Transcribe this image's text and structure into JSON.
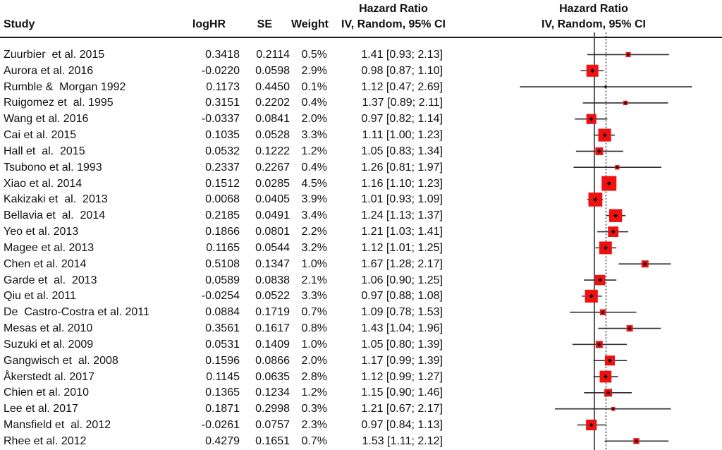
{
  "header": {
    "study": "Study",
    "loghr": "logHR",
    "se": "SE",
    "weight": "Weight",
    "hr_text_col": {
      "line1": "Hazard Ratio",
      "line2": "IV, Random, 95% CI"
    },
    "hr_plot_col": {
      "line1": "Hazard Ratio",
      "line2": "IV, Random, 95% CI"
    }
  },
  "colors": {
    "square": "#ee1111",
    "ci_line": "#2e2e2e",
    "reference_line": "#4a4a4a",
    "pooled_dashed_line": "#1a1a1a",
    "text": "#111111",
    "separator": "#1c1c1c"
  },
  "chart_data": {
    "type": "forest",
    "effect_measure": "Hazard Ratio",
    "model": "IV, Random, 95% CI",
    "x_scale": "log",
    "reference_line_hr": 1.0,
    "pooled_dashed_line_hr": 1.13,
    "x_axis_visible": false,
    "square_color": "#ee1111",
    "studies": [
      {
        "study": "Zuurbier  et al. 2015",
        "loghr": "0.3418",
        "se": "0.2114",
        "weight": "0.5%",
        "weight_pct": 0.5,
        "ci_text": "1.41 [0.93; 2.13]",
        "hr": 1.41,
        "lo": 0.93,
        "hi": 2.13
      },
      {
        "study": "Aurora et al. 2016",
        "loghr": "-0.0220",
        "se": "0.0598",
        "weight": "2.9%",
        "weight_pct": 2.9,
        "ci_text": "0.98 [0.87; 1.10]",
        "hr": 0.98,
        "lo": 0.87,
        "hi": 1.1
      },
      {
        "study": "Rumble &  Morgan 1992",
        "loghr": "0.1173",
        "se": "0.4450",
        "weight": "0.1%",
        "weight_pct": 0.1,
        "ci_text": "1.12 [0.47; 2.69]",
        "hr": 1.12,
        "lo": 0.47,
        "hi": 2.69
      },
      {
        "study": "Ruigomez et  al. 1995",
        "loghr": "0.3151",
        "se": "0.2202",
        "weight": "0.4%",
        "weight_pct": 0.4,
        "ci_text": "1.37 [0.89; 2.11]",
        "hr": 1.37,
        "lo": 0.89,
        "hi": 2.11
      },
      {
        "study": "Wang et al. 2016",
        "loghr": "-0.0337",
        "se": "0.0841",
        "weight": "2.0%",
        "weight_pct": 2.0,
        "ci_text": "0.97 [0.82; 1.14]",
        "hr": 0.97,
        "lo": 0.82,
        "hi": 1.14
      },
      {
        "study": "Cai et al. 2015",
        "loghr": "0.1035",
        "se": "0.0528",
        "weight": "3.3%",
        "weight_pct": 3.3,
        "ci_text": "1.11 [1.00; 1.23]",
        "hr": 1.11,
        "lo": 1.0,
        "hi": 1.23
      },
      {
        "study": "Hall et  al.  2015",
        "loghr": "0.0532",
        "se": "0.1222",
        "weight": "1.2%",
        "weight_pct": 1.2,
        "ci_text": "1.05 [0.83; 1.34]",
        "hr": 1.05,
        "lo": 0.83,
        "hi": 1.34
      },
      {
        "study": "Tsubono et al. 1993",
        "loghr": "0.2337",
        "se": "0.2267",
        "weight": "0.4%",
        "weight_pct": 0.4,
        "ci_text": "1.26 [0.81; 1.97]",
        "hr": 1.26,
        "lo": 0.81,
        "hi": 1.97
      },
      {
        "study": "Xiao et al. 2014",
        "loghr": "0.1512",
        "se": "0.0285",
        "weight": "4.5%",
        "weight_pct": 4.5,
        "ci_text": "1.16 [1.10; 1.23]",
        "hr": 1.16,
        "lo": 1.1,
        "hi": 1.23
      },
      {
        "study": "Kakizaki et  al.  2013",
        "loghr": "0.0068",
        "se": "0.0405",
        "weight": "3.9%",
        "weight_pct": 3.9,
        "ci_text": "1.01 [0.93; 1.09]",
        "hr": 1.01,
        "lo": 0.93,
        "hi": 1.09
      },
      {
        "study": "Bellavia et  al.  2014",
        "loghr": "0.2185",
        "se": "0.0491",
        "weight": "3.4%",
        "weight_pct": 3.4,
        "ci_text": "1.24 [1.13; 1.37]",
        "hr": 1.24,
        "lo": 1.13,
        "hi": 1.37
      },
      {
        "study": "Yeo et al. 2013",
        "loghr": "0.1866",
        "se": "0.0801",
        "weight": "2.2%",
        "weight_pct": 2.2,
        "ci_text": "1.21 [1.03; 1.41]",
        "hr": 1.21,
        "lo": 1.03,
        "hi": 1.41
      },
      {
        "study": "Magee et al. 2013",
        "loghr": "0.1165",
        "se": "0.0544",
        "weight": "3.2%",
        "weight_pct": 3.2,
        "ci_text": "1.12 [1.01; 1.25]",
        "hr": 1.12,
        "lo": 1.01,
        "hi": 1.25
      },
      {
        "study": "Chen et al. 2014",
        "loghr": "0.5108",
        "se": "0.1347",
        "weight": "1.0%",
        "weight_pct": 1.0,
        "ci_text": "1.67 [1.28; 2.17]",
        "hr": 1.67,
        "lo": 1.28,
        "hi": 2.17
      },
      {
        "study": "Garde et  al.  2013",
        "loghr": "0.0589",
        "se": "0.0838",
        "weight": "2.1%",
        "weight_pct": 2.1,
        "ci_text": "1.06 [0.90; 1.25]",
        "hr": 1.06,
        "lo": 0.9,
        "hi": 1.25
      },
      {
        "study": "Qiu et al. 2011",
        "loghr": "-0.0254",
        "se": "0.0522",
        "weight": "3.3%",
        "weight_pct": 3.3,
        "ci_text": "0.97 [0.88; 1.08]",
        "hr": 0.97,
        "lo": 0.88,
        "hi": 1.08
      },
      {
        "study": "De  Castro-Costra et al. 2011",
        "loghr": "0.0884",
        "se": "0.1719",
        "weight": "0.7%",
        "weight_pct": 0.7,
        "ci_text": "1.09 [0.78; 1.53]",
        "hr": 1.09,
        "lo": 0.78,
        "hi": 1.53
      },
      {
        "study": "Mesas et al. 2010",
        "loghr": "0.3561",
        "se": "0.1617",
        "weight": "0.8%",
        "weight_pct": 0.8,
        "ci_text": "1.43 [1.04; 1.96]",
        "hr": 1.43,
        "lo": 1.04,
        "hi": 1.96
      },
      {
        "study": "Suzuki et al. 2009",
        "loghr": "0.0531",
        "se": "0.1409",
        "weight": "1.0%",
        "weight_pct": 1.0,
        "ci_text": "1.05 [0.80; 1.39]",
        "hr": 1.05,
        "lo": 0.8,
        "hi": 1.39
      },
      {
        "study": "Gangwisch et  al. 2008",
        "loghr": "0.1596",
        "se": "0.0866",
        "weight": "2.0%",
        "weight_pct": 2.0,
        "ci_text": "1.17 [0.99; 1.39]",
        "hr": 1.17,
        "lo": 0.99,
        "hi": 1.39
      },
      {
        "study": "Åkerstedt al. 2017",
        "loghr": "0.1145",
        "se": "0.0635",
        "weight": "2.8%",
        "weight_pct": 2.8,
        "ci_text": "1.12 [0.99; 1.27]",
        "hr": 1.12,
        "lo": 0.99,
        "hi": 1.27
      },
      {
        "study": "Chien et al. 2010",
        "loghr": "0.1365",
        "se": "0.1234",
        "weight": "1.2%",
        "weight_pct": 1.2,
        "ci_text": "1.15 [0.90; 1.46]",
        "hr": 1.15,
        "lo": 0.9,
        "hi": 1.46
      },
      {
        "study": "Lee et al. 2017",
        "loghr": "0.1871",
        "se": "0.2998",
        "weight": "0.3%",
        "weight_pct": 0.3,
        "ci_text": "1.21 [0.67; 2.17]",
        "hr": 1.21,
        "lo": 0.67,
        "hi": 2.17
      },
      {
        "study": "Mansfield et  al. 2012",
        "loghr": "-0.0261",
        "se": "0.0757",
        "weight": "2.3%",
        "weight_pct": 2.3,
        "ci_text": "0.97 [0.84; 1.13]",
        "hr": 0.97,
        "lo": 0.84,
        "hi": 1.13
      },
      {
        "study": "Rhee et al. 2012",
        "loghr": "0.4279",
        "se": "0.1651",
        "weight": "0.7%",
        "weight_pct": 0.7,
        "ci_text": "1.53 [1.11; 2.12]",
        "hr": 1.53,
        "lo": 1.11,
        "hi": 2.12
      }
    ]
  }
}
